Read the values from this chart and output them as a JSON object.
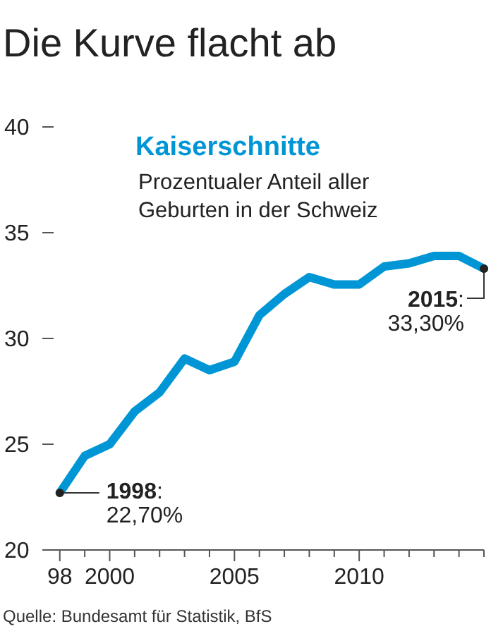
{
  "chart_data": {
    "type": "line",
    "title": "Die Kurve flacht ab",
    "subtitle": "Kaiserschnitte",
    "ylabel": "Prozentualer Anteil aller Geburten in der Schweiz",
    "x": [
      1998,
      1999,
      2000,
      2001,
      2002,
      2003,
      2004,
      2005,
      2006,
      2007,
      2008,
      2009,
      2010,
      2011,
      2012,
      2013,
      2014,
      2015
    ],
    "series": [
      {
        "color": "#0096d6",
        "values": [
          22.7,
          24.45,
          25.0,
          26.55,
          27.45,
          29.05,
          28.5,
          28.9,
          31.1,
          32.1,
          32.9,
          32.55,
          32.55,
          33.4,
          33.55,
          33.9,
          33.9,
          33.3
        ]
      }
    ],
    "xlim": [
      1997.3,
      2015
    ],
    "xticks": [
      {
        "value": 1998,
        "label": "98"
      },
      {
        "value": 1999,
        "label": null
      },
      2000,
      {
        "value": 2001,
        "label": null
      },
      {
        "value": 2002,
        "label": null
      },
      {
        "value": 2003,
        "label": null
      },
      {
        "value": 2004,
        "label": null
      },
      2005,
      {
        "value": 2006,
        "label": null
      },
      {
        "value": 2007,
        "label": null
      },
      {
        "value": 2008,
        "label": null
      },
      {
        "value": 2009,
        "label": null
      },
      2010,
      {
        "value": 2011,
        "label": null
      },
      {
        "value": 2012,
        "label": null
      },
      {
        "value": 2013,
        "label": null
      },
      {
        "value": 2014,
        "label": null
      },
      {
        "value": 2015,
        "label": null
      }
    ],
    "ylim": [
      20,
      40
    ],
    "yticks": [
      20,
      25,
      30,
      35,
      40
    ],
    "annotations": [
      {
        "text": "1998: 22,70%",
        "x": 1998,
        "y": 22.7
      },
      {
        "text": "2015: 33,30%",
        "x": 2015,
        "y": 33.3
      },
      "Quelle: Bundesamt für Statistik, BfS"
    ]
  }
}
